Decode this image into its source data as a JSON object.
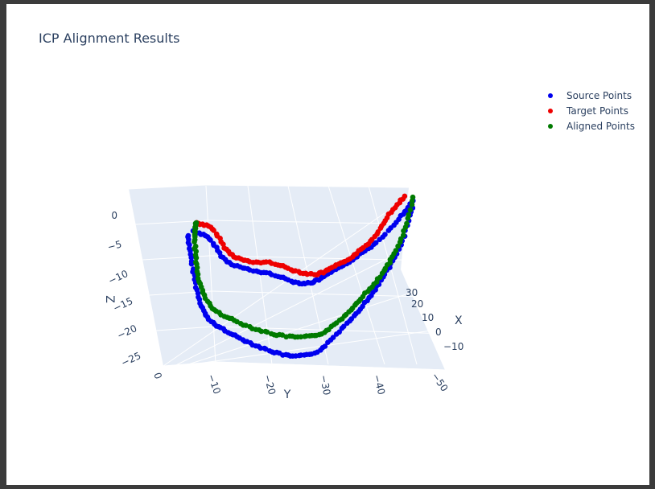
{
  "chart_data": {
    "type": "scatter3d",
    "title": "ICP Alignment Results",
    "legend_position": "top-right",
    "axes": {
      "x": {
        "label": "X",
        "ticks": [
          "30",
          "20",
          "10",
          "0",
          "−10"
        ]
      },
      "y": {
        "label": "Y",
        "ticks": [
          "0",
          "−10",
          "−20",
          "−30",
          "−40",
          "−50"
        ]
      },
      "z": {
        "label": "Z",
        "ticks": [
          "0",
          "−5",
          "−10",
          "−15",
          "−20",
          "−25"
        ]
      }
    },
    "series": [
      {
        "name": "Source Points",
        "color": "#0000ee"
      },
      {
        "name": "Target Points",
        "color": "#ee0000"
      },
      {
        "name": "Aligned Points",
        "color": "#007a00"
      }
    ]
  }
}
